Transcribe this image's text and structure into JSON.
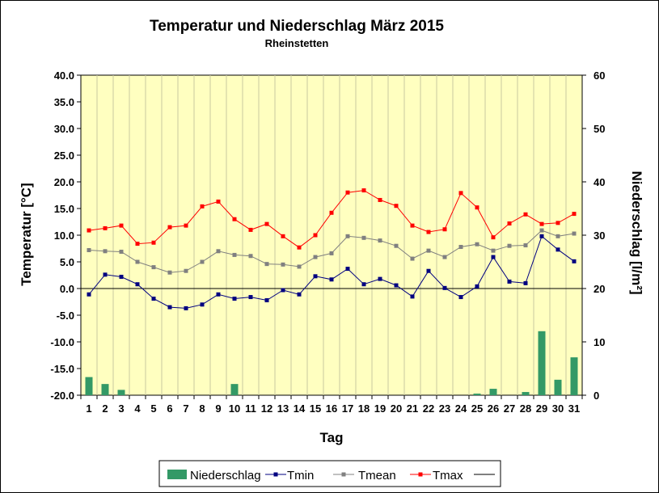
{
  "chart_data": {
    "type": "bar+line",
    "title": "Temperatur und Niederschlag  März 2015",
    "subtitle": "Rheinstetten",
    "xlabel": "Tag",
    "ylabel_left": "Temperatur [°C]",
    "ylabel_right": "Niederschlag [l/m²]",
    "categories": [
      "1",
      "2",
      "3",
      "4",
      "5",
      "6",
      "7",
      "8",
      "9",
      "10",
      "11",
      "12",
      "13",
      "14",
      "15",
      "16",
      "17",
      "18",
      "19",
      "20",
      "21",
      "22",
      "23",
      "24",
      "25",
      "26",
      "27",
      "28",
      "29",
      "30",
      "31"
    ],
    "ylim_left": [
      -20,
      40
    ],
    "ylim_right": [
      0,
      60
    ],
    "left_ticks": [
      "40.0",
      "35.0",
      "30.0",
      "25.0",
      "20.0",
      "15.0",
      "10.0",
      "5.0",
      "0.0",
      "-5.0",
      "-10.0",
      "-15.0",
      "-20.0"
    ],
    "right_ticks": [
      "60",
      "50",
      "40",
      "30",
      "20",
      "10",
      "0"
    ],
    "plot_background": "#ffffc0",
    "grid": "vertical",
    "series": [
      {
        "name": "Niederschlag",
        "axis": "right",
        "kind": "bar",
        "color": "#339966",
        "values": [
          3.4,
          2.1,
          1.0,
          0,
          0,
          0,
          0,
          0,
          0,
          2.1,
          0,
          0,
          0,
          0,
          0,
          0,
          0,
          0,
          0,
          0,
          0,
          0,
          0,
          0,
          0.3,
          1.2,
          0,
          0.6,
          12.0,
          2.9,
          7.1
        ]
      },
      {
        "name": "Tmin",
        "axis": "left",
        "kind": "line",
        "color": "#000080",
        "values": [
          -1.1,
          2.6,
          2.2,
          0.8,
          -1.9,
          -3.5,
          -3.7,
          -3.0,
          -1.1,
          -1.9,
          -1.6,
          -2.2,
          -0.3,
          -1.1,
          2.3,
          1.7,
          3.7,
          0.8,
          1.8,
          0.6,
          -1.5,
          3.3,
          0.1,
          -1.6,
          0.4,
          5.9,
          1.3,
          1.0,
          9.8,
          7.3,
          5.1
        ]
      },
      {
        "name": "Tmean",
        "axis": "left",
        "kind": "line",
        "color": "#808080",
        "values": [
          7.2,
          7.0,
          6.9,
          5.0,
          4.0,
          3.0,
          3.3,
          5.0,
          7.0,
          6.3,
          6.1,
          4.6,
          4.5,
          4.1,
          5.9,
          6.6,
          9.8,
          9.5,
          9.0,
          8.0,
          5.6,
          7.1,
          5.9,
          7.8,
          8.3,
          7.1,
          8.0,
          8.1,
          10.9,
          9.8,
          10.3
        ]
      },
      {
        "name": "Tmax",
        "axis": "left",
        "kind": "line",
        "color": "#ff0000",
        "values": [
          10.9,
          11.3,
          11.8,
          8.4,
          8.6,
          11.5,
          11.8,
          15.4,
          16.3,
          13.0,
          11.0,
          12.1,
          9.8,
          7.7,
          10.0,
          14.2,
          18.0,
          18.4,
          16.6,
          15.5,
          11.8,
          10.6,
          11.1,
          17.9,
          15.2,
          9.6,
          12.2,
          13.9,
          12.1,
          12.3,
          14.0
        ]
      }
    ],
    "extra_legend_entry": "",
    "legend_position": "bottom"
  }
}
